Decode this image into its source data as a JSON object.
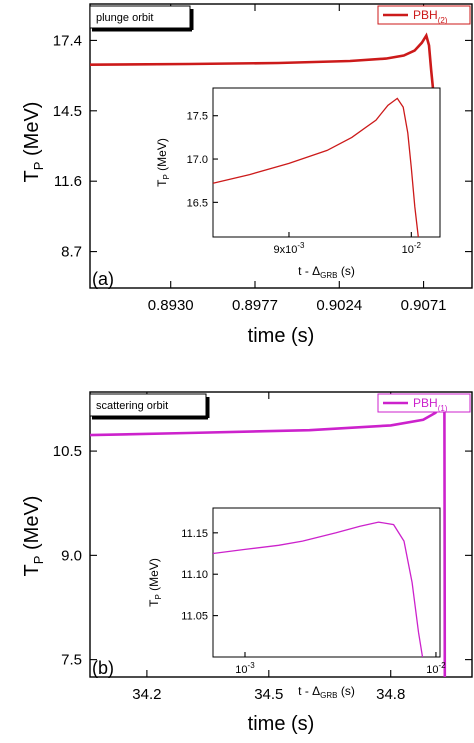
{
  "chart_data": [
    {
      "type": "line",
      "orbit_label": "plunge orbit",
      "panel_letter": "(a)",
      "legend": "PBH",
      "legend_sub": "(2)",
      "color": "#cc1a1a",
      "xlabel": "time (s)",
      "ylabel": "T",
      "ylabel_sub": "P",
      "ylabel_unit": " (MeV)",
      "xlim": [
        0.8885,
        0.9098
      ],
      "ylim": [
        7.2,
        18.9
      ],
      "xticks": [
        0.893,
        0.8977,
        0.9024,
        0.9071
      ],
      "xtick_labels": [
        "0.8930",
        "0.8977",
        "0.9024",
        "0.9071"
      ],
      "yticks": [
        8.7,
        11.6,
        14.5,
        17.4
      ],
      "ytick_labels": [
        "8.7",
        "11.6",
        "14.5",
        "17.4"
      ],
      "series": [
        {
          "x": [
            0.8885,
            0.894,
            0.899,
            0.903,
            0.905,
            0.906,
            0.9066,
            0.907,
            0.90725,
            0.9074,
            0.90752,
            0.90768,
            0.9079
          ],
          "y": [
            16.4,
            16.43,
            16.47,
            16.55,
            16.65,
            16.78,
            16.98,
            17.3,
            17.6,
            17.2,
            16.2,
            15.0,
            14.0
          ]
        }
      ],
      "inset": {
        "xlabel": "t - Δ",
        "xlabel_sub": "GRB",
        "xlabel_unit": " (s)",
        "ylabel": "T",
        "ylabel_sub": "P",
        "ylabel_unit": " (MeV)",
        "scale": "log",
        "xlim": [
          0.00843,
          0.01025
        ],
        "ylim": [
          16.1,
          17.82
        ],
        "xticks": [
          0.009,
          0.01
        ],
        "xtick_labels": [
          "9x10",
          "10"
        ],
        "xtick_sups": [
          "-3",
          "-2"
        ],
        "yticks": [
          16.5,
          17.0,
          17.5
        ],
        "ytick_labels": [
          "16.5",
          "17.0",
          "17.5"
        ],
        "series": [
          {
            "x": [
              0.00843,
              0.0087,
              0.009,
              0.0093,
              0.0095,
              0.0097,
              0.0098,
              0.00988,
              0.00993,
              0.00997,
              0.01,
              0.01003,
              0.01006
            ],
            "y": [
              16.72,
              16.82,
              16.95,
              17.1,
              17.25,
              17.45,
              17.62,
              17.7,
              17.6,
              17.3,
              16.9,
              16.45,
              16.1
            ]
          }
        ]
      }
    },
    {
      "type": "line",
      "orbit_label": "scattering orbit",
      "panel_letter": "(b)",
      "legend": "PBH",
      "legend_sub": "(1)",
      "color": "#cc22cc",
      "xlabel": "time (s)",
      "ylabel": "T",
      "ylabel_sub": "P",
      "ylabel_unit": " (MeV)",
      "xlim": [
        34.06,
        35.0
      ],
      "ylim": [
        7.25,
        11.35
      ],
      "xticks": [
        34.2,
        34.5,
        34.8
      ],
      "xtick_labels": [
        "34.2",
        "34.5",
        "34.8"
      ],
      "yticks": [
        7.5,
        9.0,
        10.5
      ],
      "ytick_labels": [
        "7.5",
        "9.0",
        "10.5"
      ],
      "series": [
        {
          "x": [
            34.06,
            34.3,
            34.6,
            34.8,
            34.88,
            34.91,
            34.925,
            34.932,
            34.9325,
            34.933
          ],
          "y": [
            10.73,
            10.76,
            10.8,
            10.87,
            10.95,
            11.05,
            11.15,
            11.2,
            9.5,
            7.25
          ]
        }
      ],
      "inset": {
        "xlabel": "t - Δ",
        "xlabel_sub": "GRB",
        "xlabel_unit": " (s)",
        "ylabel": "T",
        "ylabel_sub": "P",
        "ylabel_unit": " (MeV)",
        "scale": "log",
        "xlim": [
          0.00068,
          0.0105
        ],
        "ylim": [
          11.0,
          11.18
        ],
        "xticks": [
          0.001,
          0.01
        ],
        "xtick_labels": [
          "10",
          "10"
        ],
        "xtick_sups": [
          "-3",
          "-2"
        ],
        "yticks": [
          11.05,
          11.1,
          11.15
        ],
        "ytick_labels": [
          "11.05",
          "11.10",
          "11.15"
        ],
        "series": [
          {
            "x": [
              0.00068,
              0.001,
              0.0015,
              0.002,
              0.003,
              0.004,
              0.005,
              0.006,
              0.0068,
              0.0075,
              0.0081,
              0.0085
            ],
            "y": [
              11.125,
              11.13,
              11.135,
              11.14,
              11.15,
              11.158,
              11.163,
              11.16,
              11.14,
              11.09,
              11.03,
              11.0
            ]
          }
        ]
      }
    }
  ]
}
